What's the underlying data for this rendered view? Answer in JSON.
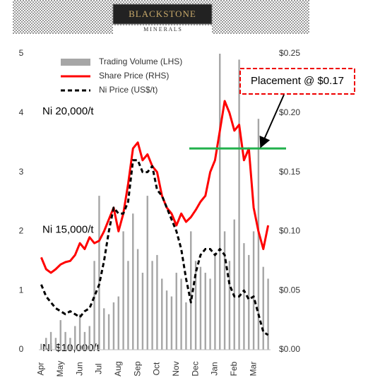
{
  "header": {
    "logo": "BLACKSTONE",
    "subtitle": "M I N E R A L S"
  },
  "chart_data": {
    "type": "bar-line",
    "categories": [
      "Apr",
      null,
      null,
      null,
      "May",
      null,
      null,
      null,
      "Jun",
      null,
      null,
      null,
      "Jul",
      null,
      null,
      null,
      "Aug",
      null,
      null,
      null,
      "Sep",
      null,
      null,
      null,
      "Oct",
      null,
      null,
      null,
      "Nov",
      null,
      null,
      null,
      "Dec",
      null,
      null,
      null,
      "Jan",
      null,
      null,
      null,
      "Feb",
      null,
      null,
      null,
      "Mar",
      null,
      null,
      null
    ],
    "series": [
      {
        "name": "Trading Volume (LHS)",
        "color": "#a6a6a6",
        "kind": "bar",
        "axis": "y",
        "values": [
          0.1,
          0.2,
          0.3,
          0.2,
          0.5,
          0.3,
          0.2,
          0.4,
          0.6,
          0.3,
          0.4,
          1.5,
          2.6,
          0.7,
          0.6,
          0.8,
          0.9,
          2.0,
          1.5,
          2.3,
          1.7,
          1.3,
          2.6,
          1.5,
          1.6,
          1.2,
          1.0,
          0.9,
          1.3,
          1.2,
          0.8,
          2.0,
          1.5,
          1.4,
          1.3,
          1.2,
          1.6,
          5.0,
          2.0,
          1.5,
          2.2,
          4.9,
          1.8,
          1.6,
          2.0,
          3.9,
          1.4,
          1.2
        ]
      },
      {
        "name": "Share Price (RHS)",
        "color": "#ff0000",
        "kind": "line",
        "axis": "y2",
        "values": [
          0.078,
          0.068,
          0.065,
          0.068,
          0.072,
          0.074,
          0.075,
          0.08,
          0.09,
          0.085,
          0.095,
          0.09,
          0.092,
          0.1,
          0.11,
          0.12,
          0.1,
          0.115,
          0.14,
          0.17,
          0.175,
          0.16,
          0.165,
          0.155,
          0.15,
          0.13,
          0.12,
          0.115,
          0.105,
          0.115,
          0.108,
          0.112,
          0.118,
          0.125,
          0.13,
          0.15,
          0.16,
          0.185,
          0.21,
          0.2,
          0.185,
          0.19,
          0.16,
          0.17,
          0.12,
          0.1,
          0.085,
          0.105
        ]
      },
      {
        "name": "Ni Price (US$/t)",
        "color": "#000000",
        "kind": "dashed",
        "axis": "y3",
        "values": [
          12750,
          12250,
          12000,
          11750,
          11625,
          11500,
          11625,
          11500,
          11375,
          11625,
          11750,
          12250,
          12750,
          13750,
          15000,
          16000,
          15750,
          15750,
          16250,
          18000,
          18000,
          17500,
          17500,
          17750,
          16750,
          16500,
          16000,
          15500,
          15000,
          14250,
          13000,
          12000,
          13250,
          14000,
          14250,
          14250,
          14000,
          14250,
          14000,
          12750,
          12250,
          12250,
          12500,
          12125,
          12250,
          11500,
          10750,
          10625
        ]
      }
    ],
    "ylim": [
      0,
      5
    ],
    "yticks": [
      0,
      1,
      2,
      3,
      4,
      5
    ],
    "y2lim": [
      0,
      0.25
    ],
    "y2ticks": [
      {
        "value": 0,
        "label": "$0.00"
      },
      {
        "value": 0.05,
        "label": "$0.05"
      },
      {
        "value": 0.1,
        "label": "$0.10"
      },
      {
        "value": 0.15,
        "label": "$0.15"
      },
      {
        "value": 0.2,
        "label": "$0.20"
      },
      {
        "value": 0.25,
        "label": "$0.25"
      }
    ],
    "y3lim": [
      10000,
      22500
    ],
    "y3ticks": [
      {
        "value": 10000,
        "label": "Ni $10,000/t"
      },
      {
        "value": 15000,
        "label": "Ni 15,000/t"
      },
      {
        "value": 20000,
        "label": "Ni 20,000/t"
      }
    ],
    "annotation": {
      "text": "Placement @ $0.17",
      "value": 0.17,
      "color": "#22b14c"
    },
    "legend": "top-left"
  }
}
